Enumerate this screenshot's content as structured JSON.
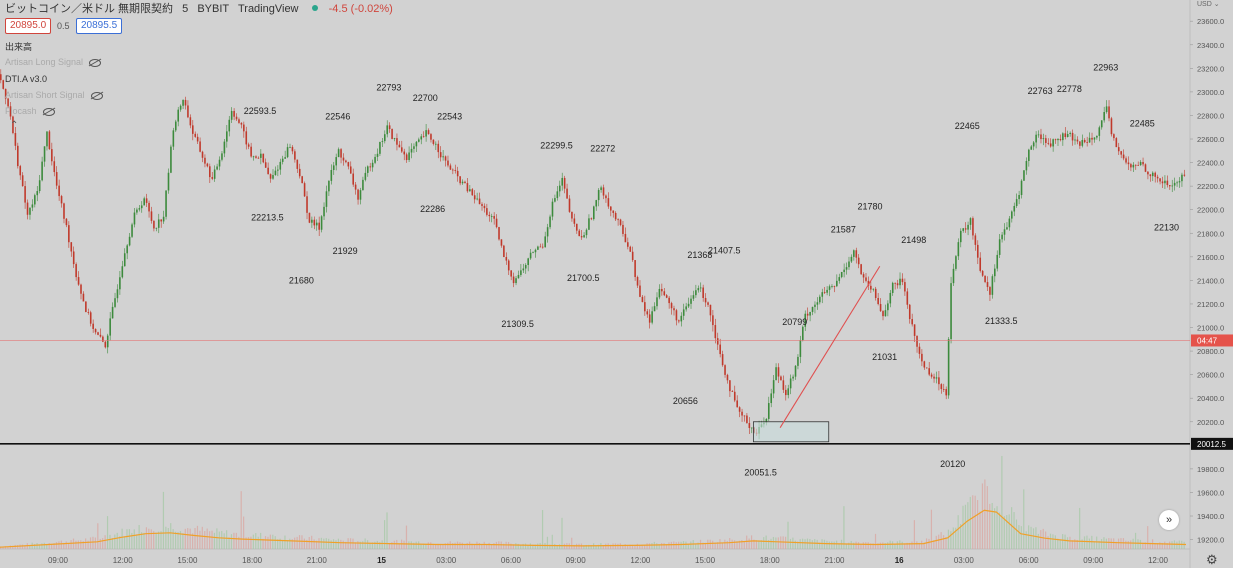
{
  "header": {
    "symbol": "ビットコイン／米ドル 無期限契約",
    "interval": "5",
    "exchange": "BYBIT",
    "source": "TradingView",
    "change": "-4.5 (-0.02%)",
    "bid": "20895.0",
    "spread": "0.5",
    "ask": "20895.5"
  },
  "indicators": {
    "volume_label": "出来高",
    "long_signal": "Artisan Long Signal",
    "dti": "DTI.A v3.0",
    "short_signal": "Artisan Short Signal",
    "fourth": "Flocash"
  },
  "chart_data": {
    "type": "candlestick",
    "currency": "USD",
    "y_ticks": [
      23600,
      23400,
      23200,
      23000,
      22800,
      22600,
      22400,
      22200,
      22000,
      21800,
      21600,
      21400,
      21200,
      21000,
      20800,
      20600,
      20400,
      20200,
      19800,
      19600,
      19400,
      19200
    ],
    "ylim": [
      19120,
      23780
    ],
    "x_ticks": [
      "09:00",
      "12:00",
      "15:00",
      "18:00",
      "21:00",
      "15",
      "03:00",
      "06:00",
      "09:00",
      "12:00",
      "15:00",
      "18:00",
      "21:00",
      "16",
      "03:00",
      "06:00",
      "09:00",
      "12:00"
    ],
    "current_price_tag": "04:47",
    "current_price_level": 20890,
    "support_price_tag": "20012.5",
    "support_level": 20012.5,
    "grid": false,
    "price_path": [
      [
        0,
        23150
      ],
      [
        4,
        22900
      ],
      [
        8,
        22400
      ],
      [
        12,
        21950
      ],
      [
        16,
        22150
      ],
      [
        20,
        22650
      ],
      [
        24,
        22200
      ],
      [
        28,
        21850
      ],
      [
        32,
        21450
      ],
      [
        36,
        21150
      ],
      [
        40,
        20950
      ],
      [
        44,
        20850
      ],
      [
        48,
        21250
      ],
      [
        52,
        21650
      ],
      [
        56,
        21950
      ],
      [
        60,
        22100
      ],
      [
        64,
        21850
      ],
      [
        68,
        21950
      ],
      [
        72,
        22700
      ],
      [
        76,
        22950
      ],
      [
        80,
        22650
      ],
      [
        84,
        22450
      ],
      [
        88,
        22250
      ],
      [
        92,
        22500
      ],
      [
        96,
        22850
      ],
      [
        100,
        22700
      ],
      [
        104,
        22450
      ],
      [
        108,
        22450
      ],
      [
        112,
        22250
      ],
      [
        116,
        22400
      ],
      [
        120,
        22550
      ],
      [
        124,
        22300
      ],
      [
        128,
        21900
      ],
      [
        132,
        21850
      ],
      [
        136,
        22250
      ],
      [
        140,
        22500
      ],
      [
        144,
        22350
      ],
      [
        148,
        22100
      ],
      [
        152,
        22350
      ],
      [
        156,
        22500
      ],
      [
        160,
        22700
      ],
      [
        164,
        22550
      ],
      [
        168,
        22450
      ],
      [
        172,
        22550
      ],
      [
        176,
        22650
      ],
      [
        180,
        22550
      ],
      [
        184,
        22400
      ],
      [
        188,
        22300
      ],
      [
        192,
        22200
      ],
      [
        196,
        22100
      ],
      [
        200,
        22000
      ],
      [
        204,
        21900
      ],
      [
        208,
        21600
      ],
      [
        212,
        21400
      ],
      [
        216,
        21500
      ],
      [
        220,
        21650
      ],
      [
        224,
        21700
      ],
      [
        228,
        22050
      ],
      [
        232,
        22250
      ],
      [
        236,
        21900
      ],
      [
        240,
        21750
      ],
      [
        244,
        21950
      ],
      [
        248,
        22200
      ],
      [
        252,
        22000
      ],
      [
        256,
        21850
      ],
      [
        260,
        21650
      ],
      [
        264,
        21250
      ],
      [
        268,
        21050
      ],
      [
        272,
        21350
      ],
      [
        276,
        21200
      ],
      [
        280,
        21050
      ],
      [
        284,
        21200
      ],
      [
        288,
        21350
      ],
      [
        292,
        21200
      ],
      [
        296,
        20850
      ],
      [
        300,
        20550
      ],
      [
        304,
        20300
      ],
      [
        308,
        20200
      ],
      [
        312,
        20100
      ],
      [
        316,
        20250
      ],
      [
        320,
        20650
      ],
      [
        324,
        20450
      ],
      [
        328,
        20650
      ],
      [
        332,
        21100
      ],
      [
        336,
        21200
      ],
      [
        340,
        21300
      ],
      [
        344,
        21350
      ],
      [
        348,
        21500
      ],
      [
        352,
        21650
      ],
      [
        356,
        21400
      ],
      [
        360,
        21300
      ],
      [
        364,
        21100
      ],
      [
        368,
        21350
      ],
      [
        372,
        21400
      ],
      [
        376,
        21000
      ],
      [
        380,
        20700
      ],
      [
        384,
        20600
      ],
      [
        386,
        20550
      ],
      [
        390,
        20450
      ],
      [
        392,
        21400
      ],
      [
        396,
        21800
      ],
      [
        400,
        21900
      ],
      [
        404,
        21500
      ],
      [
        408,
        21300
      ],
      [
        412,
        21750
      ],
      [
        416,
        21900
      ],
      [
        420,
        22150
      ],
      [
        424,
        22500
      ],
      [
        428,
        22650
      ],
      [
        432,
        22550
      ],
      [
        436,
        22600
      ],
      [
        440,
        22650
      ],
      [
        444,
        22550
      ],
      [
        448,
        22600
      ],
      [
        452,
        22650
      ],
      [
        456,
        22850
      ],
      [
        458,
        22650
      ],
      [
        462,
        22450
      ],
      [
        466,
        22350
      ],
      [
        470,
        22400
      ],
      [
        474,
        22300
      ],
      [
        478,
        22250
      ],
      [
        482,
        22200
      ],
      [
        486,
        22250
      ],
      [
        488,
        22300
      ]
    ],
    "bar_count": 488,
    "annotations": [
      {
        "label": "22593.5",
        "price": 22593.5,
        "bar": 107,
        "pos": "above"
      },
      {
        "label": "22213.5",
        "price": 22213.5,
        "bar": 110,
        "pos": "below"
      },
      {
        "label": "21680",
        "price": 21680,
        "bar": 124,
        "pos": "below"
      },
      {
        "label": "22546",
        "price": 22546,
        "bar": 139,
        "pos": "above"
      },
      {
        "label": "21929",
        "price": 21929,
        "bar": 142,
        "pos": "below"
      },
      {
        "label": "22793",
        "price": 22793,
        "bar": 160,
        "pos": "above"
      },
      {
        "label": "22700",
        "price": 22700,
        "bar": 175,
        "pos": "above"
      },
      {
        "label": "22543",
        "price": 22543,
        "bar": 185,
        "pos": "above"
      },
      {
        "label": "22286",
        "price": 22286,
        "bar": 178,
        "pos": "below"
      },
      {
        "label": "22299.5",
        "price": 22299.5,
        "bar": 229,
        "pos": "above"
      },
      {
        "label": "22272",
        "price": 22272,
        "bar": 248,
        "pos": "above"
      },
      {
        "label": "21700.5",
        "price": 21700.5,
        "bar": 240,
        "pos": "below"
      },
      {
        "label": "21309.5",
        "price": 21309.5,
        "bar": 213,
        "pos": "below"
      },
      {
        "label": "21368",
        "price": 21368,
        "bar": 288,
        "pos": "above"
      },
      {
        "label": "21407.5",
        "price": 21407.5,
        "bar": 298,
        "pos": "above"
      },
      {
        "label": "20656",
        "price": 20656,
        "bar": 282,
        "pos": "below"
      },
      {
        "label": "20051.5",
        "price": 20051.5,
        "bar": 313,
        "pos": "below"
      },
      {
        "label": "20799",
        "price": 20799,
        "bar": 327,
        "pos": "above"
      },
      {
        "label": "21587",
        "price": 21587,
        "bar": 347,
        "pos": "above"
      },
      {
        "label": "21780",
        "price": 21780,
        "bar": 358,
        "pos": "above"
      },
      {
        "label": "21498",
        "price": 21498,
        "bar": 376,
        "pos": "above"
      },
      {
        "label": "21031",
        "price": 21031,
        "bar": 364,
        "pos": "below"
      },
      {
        "label": "20120",
        "price": 20120,
        "bar": 392,
        "pos": "below"
      },
      {
        "label": "22465",
        "price": 22465,
        "bar": 398,
        "pos": "above"
      },
      {
        "label": "21333.5",
        "price": 21333.5,
        "bar": 412,
        "pos": "below"
      },
      {
        "label": "22763",
        "price": 22763,
        "bar": 428,
        "pos": "above"
      },
      {
        "label": "22778",
        "price": 22778,
        "bar": 440,
        "pos": "above"
      },
      {
        "label": "22963",
        "price": 22963,
        "bar": 455,
        "pos": "above"
      },
      {
        "label": "22485",
        "price": 22485,
        "bar": 470,
        "pos": "above"
      },
      {
        "label": "22130",
        "price": 22130,
        "bar": 480,
        "pos": "below"
      }
    ],
    "trendline": {
      "from": [
        321,
        20150
      ],
      "to": [
        362,
        21520
      ]
    },
    "box": {
      "bar_from": 310,
      "bar_to": 341,
      "price_low": 20030,
      "price_high": 20200
    },
    "volume_curve": [
      [
        0,
        0.04
      ],
      [
        20,
        0.1
      ],
      [
        40,
        0.16
      ],
      [
        50,
        0.26
      ],
      [
        60,
        0.34
      ],
      [
        70,
        0.36
      ],
      [
        80,
        0.3
      ],
      [
        90,
        0.25
      ],
      [
        100,
        0.22
      ],
      [
        110,
        0.2
      ],
      [
        120,
        0.18
      ],
      [
        140,
        0.14
      ],
      [
        160,
        0.12
      ],
      [
        180,
        0.1
      ],
      [
        200,
        0.1
      ],
      [
        220,
        0.08
      ],
      [
        240,
        0.07
      ],
      [
        260,
        0.08
      ],
      [
        280,
        0.1
      ],
      [
        300,
        0.14
      ],
      [
        310,
        0.18
      ],
      [
        320,
        0.16
      ],
      [
        340,
        0.12
      ],
      [
        360,
        0.1
      ],
      [
        380,
        0.12
      ],
      [
        390,
        0.25
      ],
      [
        398,
        0.62
      ],
      [
        405,
        0.86
      ],
      [
        410,
        0.82
      ],
      [
        415,
        0.58
      ],
      [
        420,
        0.34
      ],
      [
        430,
        0.24
      ],
      [
        440,
        0.18
      ],
      [
        460,
        0.14
      ],
      [
        488,
        0.1
      ]
    ],
    "colors": {
      "up": "#3c8a3c",
      "down": "#c0392b",
      "volume_line": "#f0a028",
      "support_line": "#111111",
      "current_line": "#e57373",
      "trendline": "#e05050"
    }
  }
}
